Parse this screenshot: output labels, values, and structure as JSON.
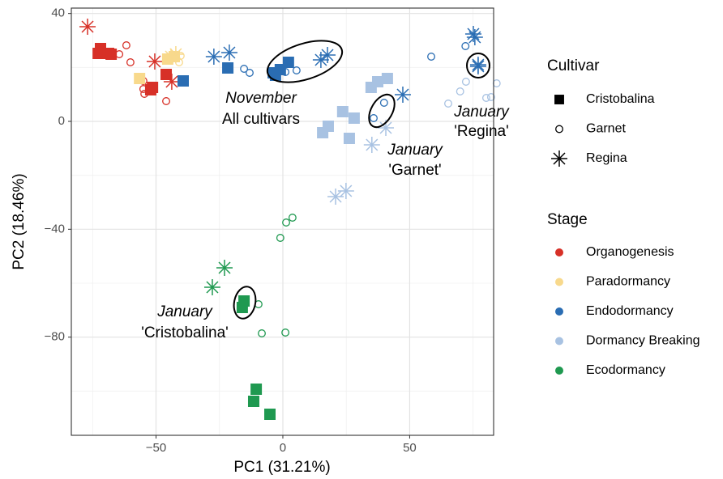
{
  "chart_data": {
    "type": "scatter",
    "x_label": "PC1 (31.21%)",
    "y_label": "PC2 (18.46%)",
    "xlim": [
      -83.4,
      83.1
    ],
    "ylim": [
      -116.4,
      42
    ],
    "xticks": [
      {
        "value": -50,
        "label": "−50"
      },
      0,
      50
    ],
    "yticks": [
      40,
      0,
      {
        "value": -40,
        "label": "−40"
      },
      {
        "value": -80,
        "label": "−80"
      }
    ],
    "x_minor_grid": [
      -75,
      -25,
      25,
      75
    ],
    "y_minor_grid": [
      20,
      -20,
      -60,
      -100
    ],
    "grid": true,
    "cultivar_legend": {
      "title": "Cultivar",
      "items": [
        {
          "label": "Cristobalina",
          "shape": "square"
        },
        {
          "label": "Garnet",
          "shape": "circle"
        },
        {
          "label": "Regina",
          "shape": "asterisk"
        }
      ]
    },
    "stage_legend": {
      "title": "Stage",
      "items": [
        {
          "label": "Organogenesis",
          "color": "#d73027"
        },
        {
          "label": "Paradormancy",
          "color": "#f8d98c"
        },
        {
          "label": "Endodormancy",
          "color": "#2a6db3"
        },
        {
          "label": "Dormancy Breaking",
          "color": "#a8c2e2"
        },
        {
          "label": "Ecodormancy",
          "color": "#1f9950"
        }
      ]
    },
    "series": [
      {
        "stage": "Organogenesis",
        "cultivar": "Cristobalina",
        "x": [
          -71.9,
          -72.8,
          -68.7,
          -67.7,
          -46,
          -51.4,
          -52.1
        ],
        "y": [
          27,
          25.2,
          25.2,
          24.9,
          17.4,
          12.6,
          11.7
        ]
      },
      {
        "stage": "Organogenesis",
        "cultivar": "Garnet",
        "x": [
          -64.5,
          -61.7,
          -60.1,
          -55,
          -54.6,
          -46,
          -55
        ],
        "y": [
          24.9,
          28.2,
          21.9,
          15,
          10.2,
          7.5,
          12
        ]
      },
      {
        "stage": "Organogenesis",
        "cultivar": "Regina",
        "x": [
          -77,
          -50.5,
          -43.8
        ],
        "y": [
          35.1,
          22.2,
          14.7
        ]
      },
      {
        "stage": "Paradormancy",
        "cultivar": "Cristobalina",
        "x": [
          -56.5,
          -45.4,
          -42.8
        ],
        "y": [
          15.9,
          23.1,
          24
        ]
      },
      {
        "stage": "Paradormancy",
        "cultivar": "Garnet",
        "x": [
          -40.9,
          -40.3
        ],
        "y": [
          21.9,
          24.3
        ]
      },
      {
        "stage": "Paradormancy",
        "cultivar": "Regina",
        "x": [
          -42.2,
          -44.1
        ],
        "y": [
          24.9,
          24
        ]
      },
      {
        "stage": "Endodormancy",
        "cultivar": "Cristobalina",
        "x": [
          -39.3,
          -21.7,
          -3.8,
          -1,
          2.2,
          -2.9
        ],
        "y": [
          15,
          19.8,
          18,
          19.2,
          21.9,
          17.1
        ]
      },
      {
        "stage": "Endodormancy",
        "cultivar": "Garnet",
        "x": [
          -15.3,
          -13.1,
          1,
          5.4,
          58.5,
          72,
          35.8,
          39.9
        ],
        "y": [
          19.5,
          18,
          18.3,
          18.9,
          24,
          27.9,
          1.2,
          6.9
        ]
      },
      {
        "stage": "Endodormancy",
        "cultivar": "Regina",
        "x": [
          -27.2,
          -21.1,
          15,
          17.6,
          47.3,
          75.1,
          75.7,
          77,
          77
        ],
        "y": [
          24,
          25.5,
          22.8,
          24.6,
          9.9,
          32.4,
          31.2,
          21,
          20.4
        ]
      },
      {
        "stage": "Dormancy Breaking",
        "cultivar": "Cristobalina",
        "x": [
          15.7,
          17.9,
          23.6,
          28.1,
          26.2,
          34.8,
          37.4,
          41.2
        ],
        "y": [
          -4.2,
          -1.8,
          3.6,
          1.2,
          -6.3,
          12.6,
          14.7,
          15.9
        ]
      },
      {
        "stage": "Dormancy Breaking",
        "cultivar": "Garnet",
        "x": [
          65.2,
          69.9,
          72.2,
          80.2,
          84.3,
          82.1
        ],
        "y": [
          6.6,
          11.1,
          14.7,
          8.7,
          14.1,
          9
        ]
      },
      {
        "stage": "Dormancy Breaking",
        "cultivar": "Regina",
        "x": [
          35.1,
          40.6,
          20.8,
          24.9
        ],
        "y": [
          -8.7,
          -2.4,
          -27.9,
          -25.8
        ]
      },
      {
        "stage": "Ecodormancy",
        "cultivar": "Cristobalina",
        "x": [
          -15.3,
          -16,
          -10.5,
          -11.5,
          -5.1
        ],
        "y": [
          -66.6,
          -69,
          -99.3,
          -103.8,
          -108.6
        ]
      },
      {
        "stage": "Ecodormancy",
        "cultivar": "Garnet",
        "x": [
          -9.6,
          -8.3,
          1,
          -1,
          1.3,
          3.8
        ],
        "y": [
          -67.8,
          -78.6,
          -78.3,
          -43.2,
          -37.5,
          -35.7
        ]
      },
      {
        "stage": "Ecodormancy",
        "cultivar": "Regina",
        "x": [
          -23,
          -27.8
        ],
        "y": [
          -54.3,
          -61.5
        ]
      }
    ],
    "annotations": [
      {
        "emphasis": "November",
        "text": "All cultivars"
      },
      {
        "emphasis": "January",
        "text": "'Garnet'"
      },
      {
        "emphasis": "January",
        "text": "'Regina'"
      },
      {
        "emphasis": "January",
        "text": "'Cristobalina'"
      }
    ]
  }
}
